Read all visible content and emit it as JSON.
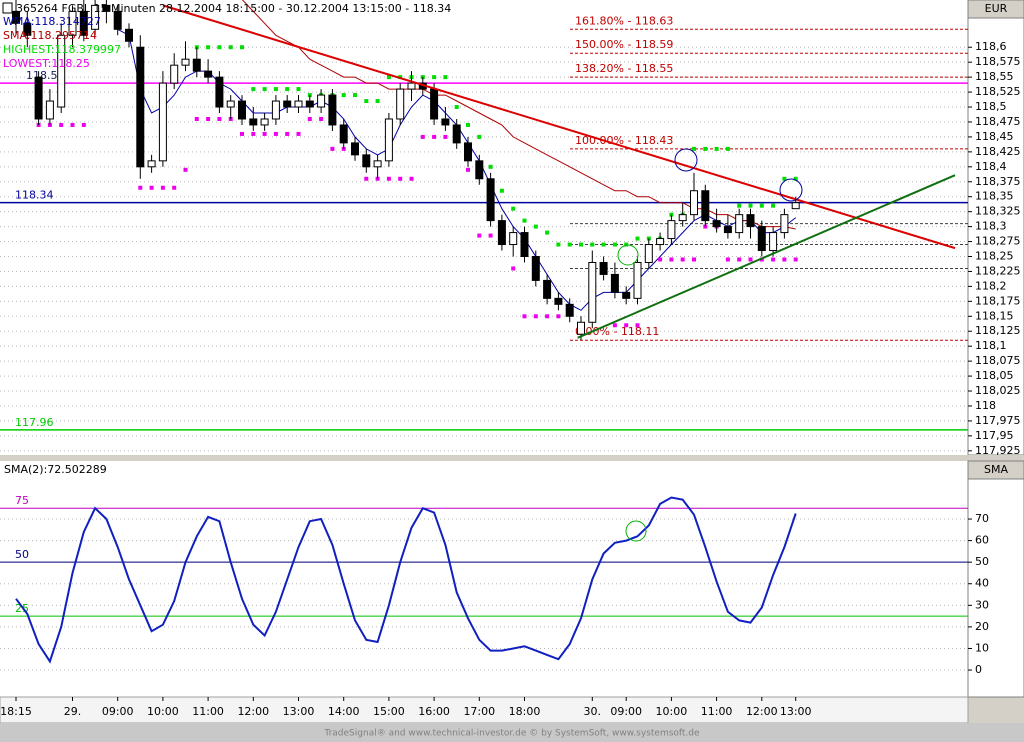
{
  "chart_data": [
    {
      "type": "candlestick",
      "title": "365264 FGBL 15 Minuten 28.12.2004 18:15:00 - 30.12.2004 13:15:00 - 118.34",
      "axis_label": "EUR",
      "categories": [
        "18:15",
        null,
        null,
        null,
        null,
        "29.",
        null,
        null,
        null,
        "09:00",
        null,
        null,
        null,
        "10:00",
        null,
        null,
        null,
        "11:00",
        null,
        null,
        null,
        "12:00",
        null,
        null,
        null,
        "13:00",
        null,
        null,
        null,
        "14:00",
        null,
        null,
        null,
        "15:00",
        null,
        null,
        null,
        "16:00",
        null,
        null,
        null,
        "17:00",
        null,
        null,
        null,
        "18:00",
        null,
        null,
        null,
        null,
        null,
        "30.",
        null,
        null,
        "09:00",
        null,
        null,
        null,
        "10:00",
        null,
        null,
        null,
        "11:00",
        null,
        null,
        null,
        "12:00",
        null,
        null,
        "13:00"
      ],
      "open": [
        118.66,
        118.64,
        118.55,
        118.48,
        118.5,
        118.62,
        118.66,
        118.63,
        118.67,
        118.66,
        118.63,
        118.6,
        118.4,
        118.41,
        118.54,
        118.57,
        118.58,
        118.56,
        118.55,
        118.5,
        118.51,
        118.48,
        118.47,
        118.48,
        118.51,
        118.5,
        118.51,
        118.5,
        118.52,
        118.47,
        118.44,
        118.42,
        118.4,
        118.41,
        118.48,
        118.53,
        118.54,
        118.53,
        118.48,
        118.47,
        118.44,
        118.41,
        118.38,
        118.31,
        118.27,
        118.29,
        118.25,
        118.21,
        118.18,
        118.17,
        118.12,
        118.14,
        118.24,
        118.22,
        118.19,
        118.18,
        118.24,
        118.27,
        118.28,
        118.31,
        118.32,
        118.36,
        118.31,
        118.3,
        118.29,
        118.32,
        118.3,
        118.26,
        118.29,
        118.33
      ],
      "high": [
        118.68,
        118.66,
        118.56,
        118.53,
        118.64,
        118.67,
        118.68,
        118.68,
        118.68,
        118.67,
        118.64,
        118.62,
        118.42,
        118.56,
        118.59,
        118.61,
        118.6,
        118.58,
        118.56,
        118.52,
        118.52,
        118.5,
        118.49,
        118.52,
        118.52,
        118.52,
        118.52,
        118.53,
        118.53,
        118.48,
        118.45,
        118.43,
        118.42,
        118.49,
        118.54,
        118.56,
        118.55,
        118.54,
        118.5,
        118.48,
        118.45,
        118.42,
        118.39,
        118.32,
        118.3,
        118.3,
        118.26,
        118.22,
        118.19,
        118.18,
        118.15,
        118.26,
        118.25,
        118.24,
        118.2,
        118.25,
        118.28,
        118.29,
        118.32,
        118.34,
        118.39,
        118.37,
        118.33,
        118.32,
        118.33,
        118.33,
        118.31,
        118.3,
        118.33,
        118.35
      ],
      "low": [
        118.62,
        118.6,
        118.47,
        118.47,
        118.49,
        118.6,
        118.61,
        118.62,
        118.64,
        118.62,
        118.6,
        118.38,
        118.39,
        118.4,
        118.53,
        118.56,
        118.55,
        118.54,
        118.49,
        118.48,
        118.47,
        118.46,
        118.46,
        118.47,
        118.49,
        118.49,
        118.49,
        118.49,
        118.46,
        118.43,
        118.41,
        118.39,
        118.38,
        118.4,
        118.47,
        118.51,
        118.52,
        118.47,
        118.46,
        118.43,
        118.4,
        118.37,
        118.3,
        118.26,
        118.25,
        118.24,
        118.2,
        118.17,
        118.16,
        118.14,
        118.11,
        118.13,
        118.21,
        118.18,
        118.17,
        118.17,
        118.23,
        118.26,
        118.27,
        118.3,
        118.31,
        118.3,
        118.29,
        118.28,
        118.28,
        118.28,
        118.25,
        118.25,
        118.28,
        118.33
      ],
      "close": [
        118.64,
        118.62,
        118.48,
        118.51,
        118.62,
        118.66,
        118.62,
        118.67,
        118.66,
        118.63,
        118.61,
        118.4,
        118.41,
        118.54,
        118.57,
        118.58,
        118.56,
        118.55,
        118.5,
        118.51,
        118.48,
        118.47,
        118.48,
        118.51,
        118.5,
        118.51,
        118.5,
        118.52,
        118.47,
        118.44,
        118.42,
        118.4,
        118.41,
        118.48,
        118.53,
        118.54,
        118.53,
        118.48,
        118.47,
        118.44,
        118.41,
        118.38,
        118.31,
        118.27,
        118.29,
        118.25,
        118.21,
        118.18,
        118.17,
        118.15,
        118.14,
        118.24,
        118.22,
        118.19,
        118.18,
        118.24,
        118.27,
        118.28,
        118.31,
        118.32,
        118.36,
        118.31,
        118.3,
        118.29,
        118.32,
        118.3,
        118.26,
        118.29,
        118.32,
        118.34
      ],
      "lines": [
        {
          "name": "WMA:118.314727",
          "color": "#0000a8",
          "values": [
            null,
            null,
            null,
            null,
            null,
            null,
            null,
            null,
            null,
            118.63,
            118.62,
            118.53,
            118.49,
            118.5,
            118.52,
            118.55,
            118.56,
            118.56,
            118.54,
            118.53,
            118.51,
            118.49,
            118.49,
            118.49,
            118.5,
            118.5,
            118.5,
            118.51,
            118.5,
            118.48,
            118.45,
            118.43,
            118.42,
            118.43,
            118.47,
            118.5,
            118.52,
            118.51,
            118.49,
            118.47,
            118.44,
            118.41,
            118.37,
            118.33,
            118.3,
            118.28,
            118.25,
            118.22,
            118.19,
            118.17,
            118.16,
            118.18,
            118.19,
            118.19,
            118.19,
            118.21,
            118.23,
            118.25,
            118.27,
            118.29,
            118.31,
            118.32,
            118.31,
            118.3,
            118.31,
            118.31,
            118.29,
            118.29,
            118.3,
            118.315
          ]
        },
        {
          "name": "SMA:118.295714",
          "color": "#b00000",
          "values": [
            null,
            null,
            null,
            null,
            null,
            null,
            null,
            null,
            null,
            null,
            null,
            null,
            null,
            null,
            null,
            null,
            null,
            null,
            null,
            null,
            118.68,
            118.66,
            118.64,
            118.62,
            118.61,
            118.6,
            118.58,
            118.57,
            118.56,
            118.55,
            118.55,
            118.54,
            118.54,
            118.53,
            118.53,
            118.53,
            118.53,
            118.52,
            118.52,
            118.51,
            118.5,
            118.49,
            118.48,
            118.47,
            118.45,
            118.44,
            118.43,
            118.42,
            118.41,
            118.4,
            118.39,
            118.38,
            118.37,
            118.36,
            118.36,
            118.35,
            118.35,
            118.34,
            118.34,
            118.34,
            118.33,
            118.33,
            118.32,
            118.32,
            118.31,
            118.31,
            118.3,
            118.3,
            118.3,
            118.296
          ]
        }
      ],
      "dots": [
        {
          "name": "HIGHEST:118.379997",
          "color": "#00dd00",
          "values": [
            null,
            null,
            null,
            null,
            null,
            null,
            null,
            null,
            null,
            null,
            null,
            null,
            null,
            null,
            null,
            null,
            118.6,
            118.6,
            118.6,
            118.6,
            118.6,
            118.53,
            118.53,
            118.53,
            118.53,
            118.53,
            118.52,
            118.52,
            118.52,
            118.52,
            118.52,
            118.51,
            118.51,
            118.55,
            118.55,
            118.55,
            118.55,
            118.55,
            118.55,
            118.5,
            118.47,
            118.45,
            118.4,
            118.36,
            118.33,
            118.31,
            118.3,
            118.29,
            118.27,
            118.27,
            118.27,
            118.27,
            118.27,
            118.27,
            118.27,
            118.28,
            118.28,
            118.28,
            118.32,
            118.32,
            118.43,
            118.43,
            118.43,
            118.43,
            118.335,
            118.335,
            118.335,
            118.335,
            118.38,
            118.38
          ]
        },
        {
          "name": "LOWEST:118.25",
          "color": "#ee00ee",
          "values": [
            null,
            null,
            118.47,
            118.47,
            118.47,
            118.47,
            118.47,
            null,
            null,
            null,
            null,
            118.365,
            118.365,
            118.365,
            118.365,
            118.395,
            118.48,
            118.48,
            118.48,
            118.48,
            118.455,
            118.455,
            118.455,
            118.455,
            118.455,
            118.455,
            118.48,
            118.48,
            118.43,
            118.43,
            118.43,
            118.38,
            118.38,
            118.38,
            118.38,
            118.38,
            118.45,
            118.45,
            118.45,
            118.45,
            118.395,
            118.285,
            118.285,
            118.285,
            118.23,
            118.15,
            118.15,
            118.15,
            118.15,
            null,
            null,
            null,
            null,
            118.135,
            118.135,
            118.135,
            118.245,
            118.245,
            118.245,
            118.245,
            118.245,
            118.3,
            118.3,
            118.245,
            118.245,
            118.245,
            118.245,
            118.245,
            118.245,
            118.245
          ]
        }
      ],
      "hlines": [
        {
          "value": 118.54,
          "color": "#ff00ff"
        },
        {
          "value": 118.34,
          "color": "#0000a0"
        },
        {
          "value": 117.96,
          "color": "#00cc00"
        }
      ],
      "fib_levels": [
        {
          "label": "161.80% - 118.63",
          "value": 118.63
        },
        {
          "label": "150.00% - 118.59",
          "value": 118.59
        },
        {
          "label": "138.20% - 118.55",
          "value": 118.55
        },
        {
          "label": "100.00% - 118.43",
          "value": 118.43
        },
        {
          "label": "0.00% - 118.11",
          "value": 118.11
        }
      ],
      "fib_color": "#c00000",
      "dashed_levels": [
        118.305,
        118.27,
        118.23
      ],
      "trendlines": [
        {
          "color": "#dd0000",
          "x": [
            13,
            83.1
          ],
          "y": [
            118.67,
            118.264
          ]
        },
        {
          "color": "#107010",
          "x": [
            49.7,
            83.1
          ],
          "y": [
            118.114,
            118.386
          ]
        }
      ],
      "xlim": [
        -1.416,
        84.248
      ],
      "ylim": [
        117.918,
        118.679
      ],
      "yticks": [
        {
          "value": 118.6,
          "label": "118,6"
        },
        {
          "value": 118.575,
          "label": "118,575"
        },
        {
          "value": 118.55,
          "label": "118,55"
        },
        {
          "value": 118.525,
          "label": "118,525"
        },
        {
          "value": 118.5,
          "label": "118,5"
        },
        {
          "value": 118.475,
          "label": "118,475"
        },
        {
          "value": 118.45,
          "label": "118,45"
        },
        {
          "value": 118.425,
          "label": "118,425"
        },
        {
          "value": 118.4,
          "label": "118,4"
        },
        {
          "value": 118.375,
          "label": "118,375"
        },
        {
          "value": 118.35,
          "label": "118,35"
        },
        {
          "value": 118.325,
          "label": "118,325"
        },
        {
          "value": 118.3,
          "label": "118,3"
        },
        {
          "value": 118.275,
          "label": "118,275"
        },
        {
          "value": 118.25,
          "label": "118,25"
        },
        {
          "value": 118.225,
          "label": "118,225"
        },
        {
          "value": 118.2,
          "label": "118,2"
        },
        {
          "value": 118.175,
          "label": "118,175"
        },
        {
          "value": 118.15,
          "label": "118,15"
        },
        {
          "value": 118.125,
          "label": "118,125"
        },
        {
          "value": 118.1,
          "label": "118,1"
        },
        {
          "value": 118.075,
          "label": "118,075"
        },
        {
          "value": 118.05,
          "label": "118,05"
        },
        {
          "value": 118.025,
          "label": "118,025"
        },
        118,
        {
          "value": 117.975,
          "label": "117,975"
        },
        {
          "value": 117.95,
          "label": "117,95"
        },
        {
          "value": 117.925,
          "label": "117,925"
        }
      ],
      "grid": true
    },
    {
      "type": "line",
      "title": "SMA(2):72.502289",
      "axis_label": "SMA",
      "color": "#1020c0",
      "values": [
        33,
        26,
        12,
        4,
        20,
        45,
        64,
        75,
        70,
        57,
        42,
        30,
        18,
        21,
        32,
        50,
        62,
        71,
        69,
        50,
        33,
        21,
        16,
        27,
        42,
        57,
        69,
        70,
        58,
        40,
        23,
        14,
        13,
        30,
        50,
        66,
        75,
        73,
        58,
        36,
        24,
        14,
        9,
        9,
        10,
        11,
        9,
        7,
        5,
        12,
        24,
        42,
        54,
        59,
        60,
        62,
        67,
        77,
        80,
        79,
        72,
        57,
        41,
        27,
        23,
        22,
        29,
        44,
        57,
        72.5
      ],
      "levels": [
        {
          "value": 75,
          "color": "#c000c0"
        },
        {
          "value": 50,
          "color": "#000080"
        },
        {
          "value": 25,
          "color": "#00c000"
        }
      ],
      "ylim": [
        -12.5,
        96.9
      ],
      "yticks": [
        0,
        10,
        20,
        30,
        40,
        50,
        60,
        70
      ],
      "grid": true
    }
  ],
  "footer": "TradeSignal® and www.technical-investor.de © by SystemSoft, www.systemsoft.de"
}
